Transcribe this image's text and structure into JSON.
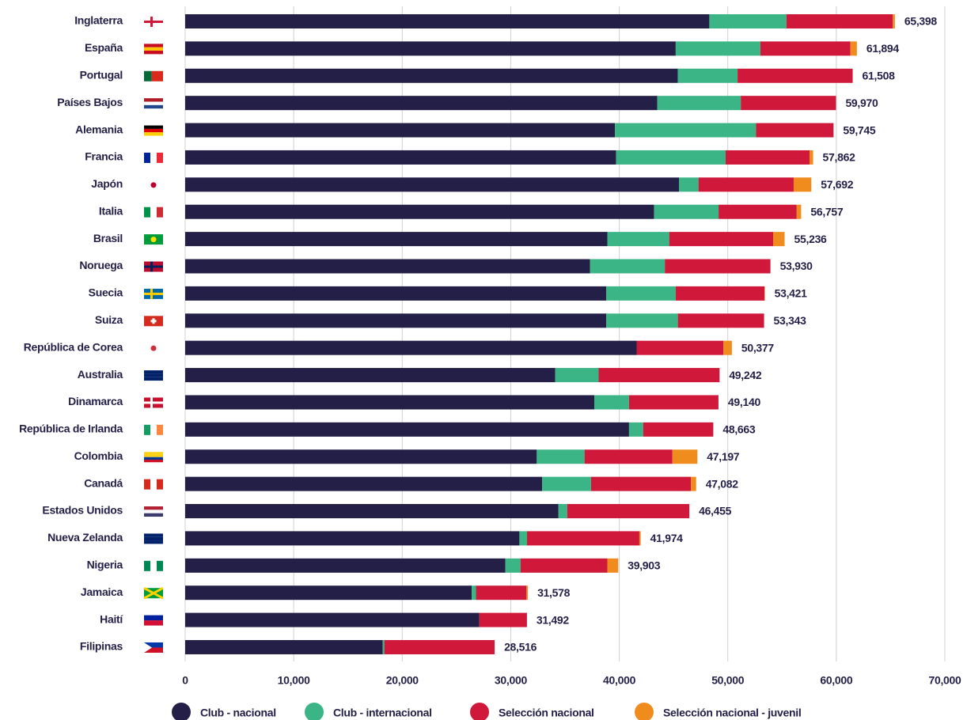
{
  "chart_data": {
    "type": "stacked_bar",
    "orientation": "horizontal",
    "categories": [
      "Inglaterra",
      "España",
      "Portugal",
      "Países Bajos",
      "Alemania",
      "Francia",
      "Japón",
      "Italia",
      "Brasil",
      "Noruega",
      "Suecia",
      "Suiza",
      "República de Corea",
      "Australia",
      "Dinamarca",
      "República de Irlanda",
      "Colombia",
      "Canadá",
      "Estados Unidos",
      "Nueva Zelanda",
      "Nigeria",
      "Jamaica",
      "Haití",
      "Filipinas"
    ],
    "series": [
      {
        "name": "Club - nacional",
        "color": "#231f47",
        "values": [
          48300,
          45200,
          45400,
          43500,
          39600,
          39700,
          45500,
          43200,
          38900,
          37300,
          38800,
          38800,
          41600,
          34100,
          37700,
          40900,
          32400,
          32900,
          34400,
          30800,
          29500,
          26400,
          27100,
          18200
        ]
      },
      {
        "name": "Club - internacional",
        "color": "#3cb586",
        "values": [
          7100,
          7800,
          5500,
          7700,
          13000,
          10100,
          1800,
          5950,
          5700,
          6900,
          6400,
          6600,
          0,
          4000,
          3200,
          1300,
          4400,
          4500,
          800,
          700,
          1400,
          400,
          0,
          150
        ]
      },
      {
        "name": "Selección nacional",
        "color": "#d0183a",
        "values": [
          9800,
          8300,
          10608,
          8770,
          7145,
          7730,
          8770,
          7200,
          9580,
          9730,
          8180,
          7943,
          8000,
          11142,
          8240,
          6463,
          8100,
          9200,
          11255,
          10350,
          8000,
          4650,
          4392,
          10166
        ]
      },
      {
        "name": "Selección nacional - juvenil",
        "color": "#f08c1e",
        "values": [
          198,
          594,
          0,
          0,
          0,
          332,
          1622,
          407,
          1056,
          0,
          41,
          0,
          777,
          0,
          0,
          0,
          2297,
          482,
          0,
          124,
          1003,
          128,
          0,
          0
        ]
      }
    ],
    "totals": [
      65398,
      61894,
      61508,
      59970,
      59745,
      57862,
      57692,
      56757,
      55236,
      53930,
      53421,
      53343,
      50377,
      49242,
      49140,
      48663,
      47197,
      47082,
      46455,
      41974,
      39903,
      31578,
      31492,
      28516
    ],
    "total_labels": [
      "65,398",
      "61,894",
      "61,508",
      "59,970",
      "59,745",
      "57,862",
      "57,692",
      "56,757",
      "55,236",
      "53,930",
      "53,421",
      "53,343",
      "50,377",
      "49,242",
      "49,140",
      "48,663",
      "47,197",
      "47,082",
      "46,455",
      "41,974",
      "39,903",
      "31,578",
      "31,492",
      "28,516"
    ],
    "xlim": [
      0,
      70000
    ],
    "xticks": [
      0,
      {
        "value": 10000,
        "label": "10,000"
      },
      {
        "value": 20000,
        "label": "20,000"
      },
      {
        "value": 30000,
        "label": "30,000"
      },
      {
        "value": 40000,
        "label": "40,000"
      },
      {
        "value": 50000,
        "label": "50,000"
      },
      {
        "value": 60000,
        "label": "60,000"
      },
      {
        "value": 70000,
        "label": "70,000"
      }
    ],
    "grid": true,
    "legend": "bottom"
  }
}
